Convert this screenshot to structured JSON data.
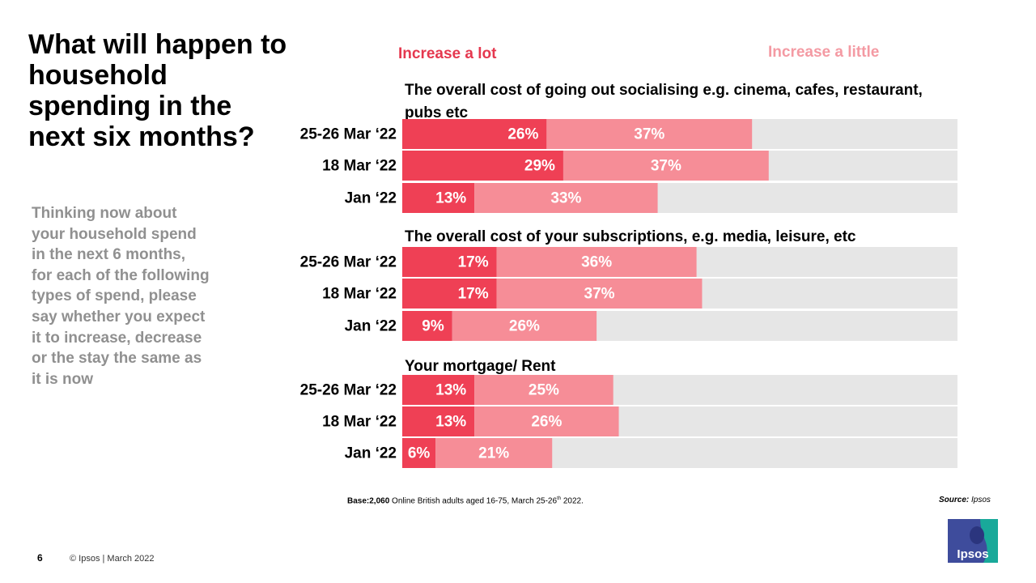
{
  "title": "What will happen to household spending in the next six months?",
  "question": "Thinking now about your household spend in the next 6 months, for each of the following  types of spend, please say whether you expect it to increase, decrease or the stay the same as it is now",
  "legend": {
    "increase_lot": "Increase a lot",
    "increase_little": "Increase a little"
  },
  "footer": {
    "base_bold": "Base:2,060",
    "base_text": " Online British adults aged 16-75, March 25-26",
    "base_sup": "th",
    "base_end": " 2022.",
    "source_label": "Source:",
    "source_value": " Ipsos",
    "page_number": "6",
    "copyright": "© Ipsos | March 2022",
    "logo_text": "Ipsos"
  },
  "colors": {
    "increase_lot": "#ef4055",
    "increase_little": "#f68d97",
    "remainder": "#e6e6e6",
    "question_text": "#909090"
  },
  "chart_data": {
    "type": "bar",
    "orientation": "horizontal",
    "stacked": true,
    "xlim": [
      0,
      100
    ],
    "series_names": [
      "Increase a lot",
      "Increase a little"
    ],
    "groups": [
      {
        "title": "The overall cost of going out socialising  e.g. cinema, cafes, restaurant, pubs etc",
        "rows": [
          {
            "label": "25-26 Mar ‘22",
            "values": [
              26,
              37
            ],
            "labels": [
              "26%",
              "37%"
            ]
          },
          {
            "label": "18 Mar ‘22",
            "values": [
              29,
              37
            ],
            "labels": [
              "29%",
              "37%"
            ]
          },
          {
            "label": "Jan ‘22",
            "values": [
              13,
              33
            ],
            "labels": [
              "13%",
              "33%"
            ]
          }
        ]
      },
      {
        "title": "The overall cost of your subscriptions,  e.g. media, leisure, etc",
        "rows": [
          {
            "label": "25-26 Mar ‘22",
            "values": [
              17,
              36
            ],
            "labels": [
              "17%",
              "36%"
            ]
          },
          {
            "label": "18 Mar ‘22",
            "values": [
              17,
              37
            ],
            "labels": [
              "17%",
              "37%"
            ]
          },
          {
            "label": "Jan ‘22",
            "values": [
              9,
              26
            ],
            "labels": [
              "9%",
              "26%"
            ]
          }
        ]
      },
      {
        "title": "Your mortgage/ Rent",
        "rows": [
          {
            "label": "25-26 Mar ‘22",
            "values": [
              13,
              25
            ],
            "labels": [
              "13%",
              "25%"
            ]
          },
          {
            "label": "18 Mar ‘22",
            "values": [
              13,
              26
            ],
            "labels": [
              "13%",
              "26%"
            ]
          },
          {
            "label": "Jan ‘22",
            "values": [
              6,
              21
            ],
            "labels": [
              "6%",
              "21%"
            ]
          }
        ]
      }
    ]
  }
}
